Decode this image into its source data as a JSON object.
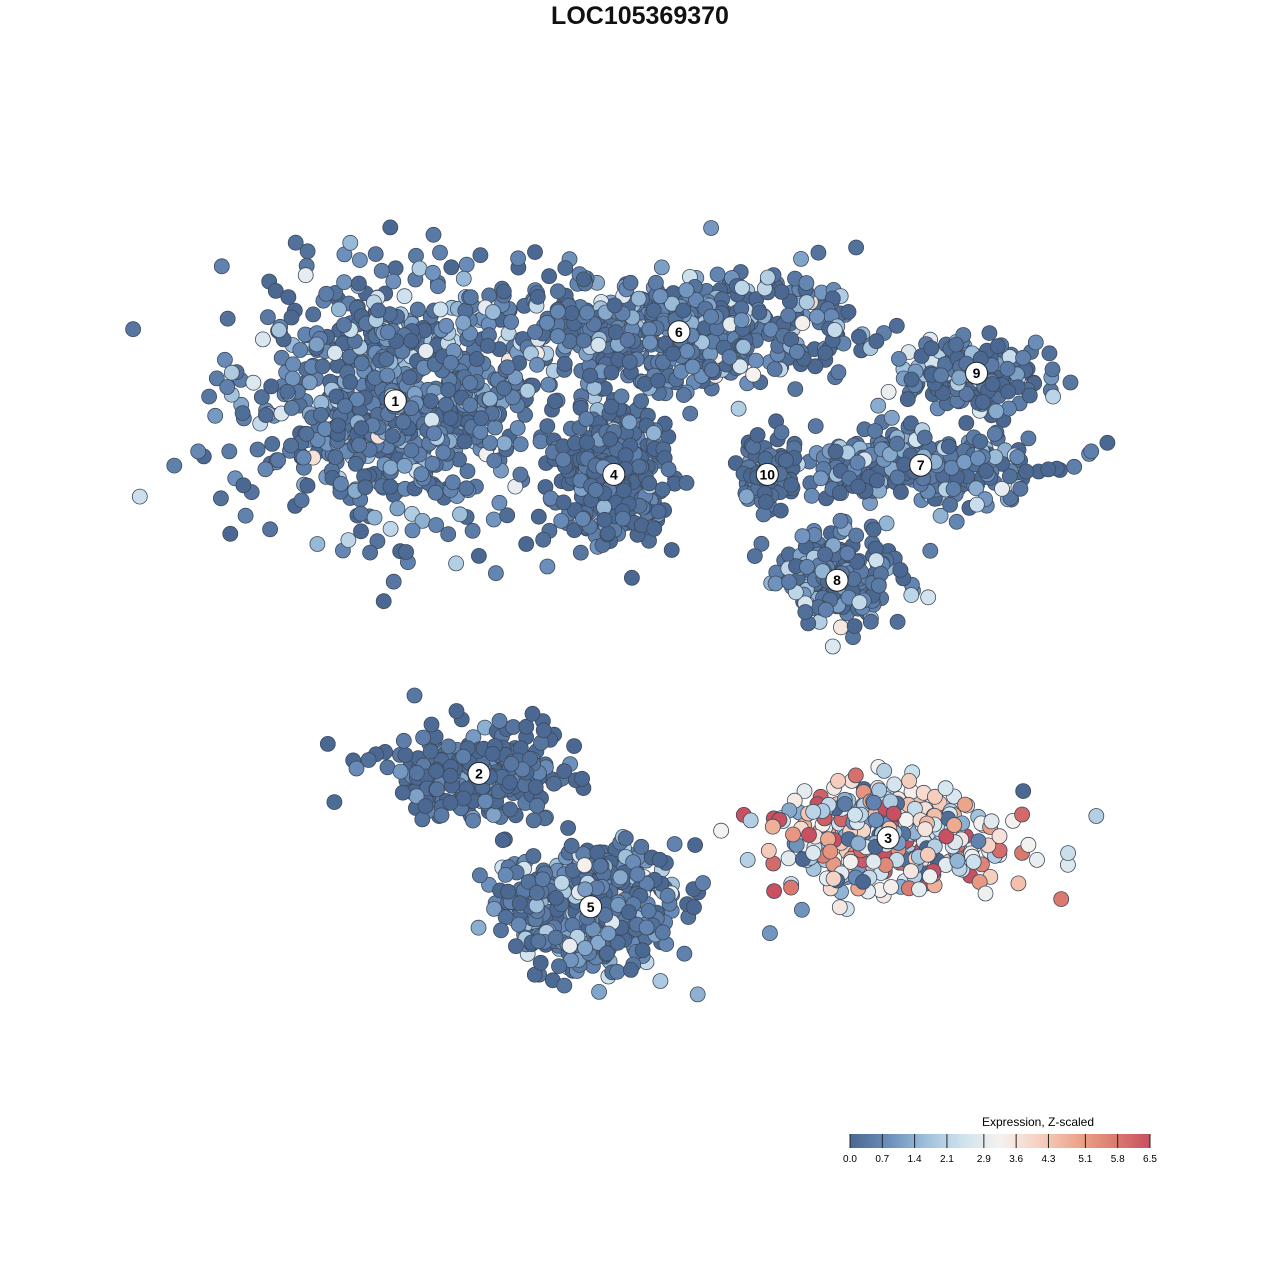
{
  "chart_data": {
    "type": "scatter",
    "title": "LOC105369370",
    "xlabel": "",
    "ylabel": "",
    "point_style": {
      "stroke": "#3d4a5c"
    },
    "clusters": [
      {
        "id": "1",
        "label": "1",
        "center": [
          -5.8,
          5.2
        ],
        "spread": [
          3.6,
          3.0
        ],
        "n": 780,
        "mean_expr": 0.9
      },
      {
        "id": "2",
        "label": "2",
        "center": [
          -4.0,
          -2.9
        ],
        "spread": [
          2.3,
          1.2
        ],
        "n": 280,
        "mean_expr": 0.3
      },
      {
        "id": "3",
        "label": "3",
        "center": [
          4.8,
          -4.3
        ],
        "spread": [
          2.6,
          1.3
        ],
        "n": 420,
        "mean_expr": 3.3
      },
      {
        "id": "4",
        "label": "4",
        "center": [
          -1.1,
          3.6
        ],
        "spread": [
          1.4,
          1.6
        ],
        "n": 330,
        "mean_expr": 0.2
      },
      {
        "id": "5",
        "label": "5",
        "center": [
          -1.6,
          -5.8
        ],
        "spread": [
          2.0,
          1.4
        ],
        "n": 520,
        "mean_expr": 1.0
      },
      {
        "id": "6",
        "label": "6",
        "center": [
          0.3,
          6.7
        ],
        "spread": [
          4.2,
          1.4
        ],
        "n": 620,
        "mean_expr": 0.9
      },
      {
        "id": "7",
        "label": "7",
        "center": [
          5.5,
          3.8
        ],
        "spread": [
          2.7,
          0.9
        ],
        "n": 300,
        "mean_expr": 0.9
      },
      {
        "id": "8",
        "label": "8",
        "center": [
          3.7,
          1.3
        ],
        "spread": [
          1.6,
          1.1
        ],
        "n": 220,
        "mean_expr": 0.8
      },
      {
        "id": "9",
        "label": "9",
        "center": [
          6.7,
          5.8
        ],
        "spread": [
          1.6,
          0.8
        ],
        "n": 190,
        "mean_expr": 0.8
      },
      {
        "id": "10",
        "label": "10",
        "center": [
          2.2,
          3.6
        ],
        "spread": [
          0.6,
          0.8
        ],
        "n": 90,
        "mean_expr": 0.2
      }
    ],
    "xlim": [
      -10,
      10
    ],
    "ylim": [
      -10,
      10
    ],
    "legend": {
      "title": "Expression, Z-scaled",
      "ticks": [
        "0.0",
        "0.7",
        "1.4",
        "2.1",
        "2.9",
        "3.6",
        "4.3",
        "5.1",
        "5.8",
        "6.5"
      ],
      "range": [
        0.0,
        6.5
      ],
      "colors": [
        "#4a6891",
        "#6a8dba",
        "#9dbfdb",
        "#cfe2ee",
        "#f5f2ef",
        "#f6d2c2",
        "#eda88e",
        "#dd7e70",
        "#c85060"
      ],
      "placement": "bottom-right"
    },
    "grid": false
  }
}
